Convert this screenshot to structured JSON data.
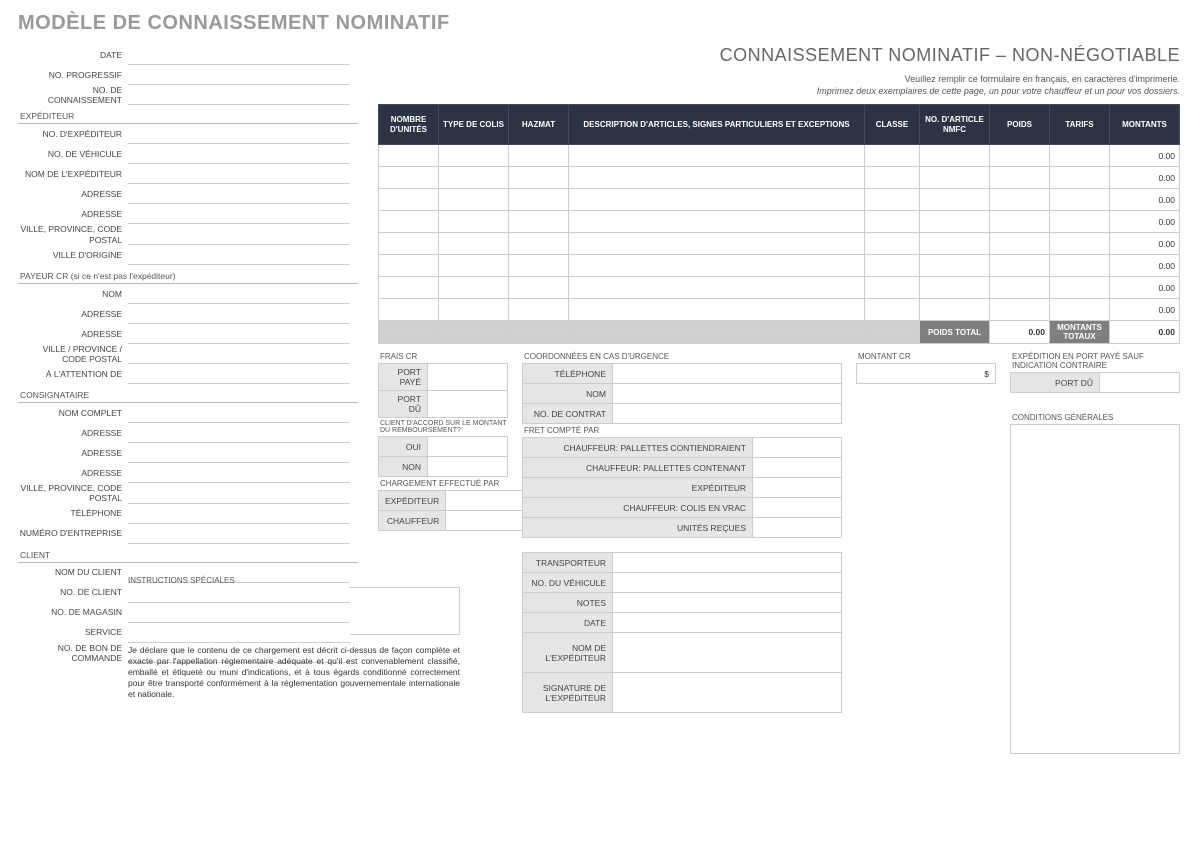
{
  "title": "MODÈLE DE CONNAISSEMENT NOMINATIF",
  "subtitle": "CONNAISSEMENT NOMINATIF – NON-NÉGOTIABLE",
  "note1": "Veuillez remplir ce formulaire en français, en caractères d'imprimerie.",
  "note2": "Imprimez deux exemplaires de cette page, un pour votre chauffeur et un pour vos dossiers.",
  "top_fields": {
    "date": "DATE",
    "prog": "NO. PROGRESSIF",
    "bol": "NO. DE CONNAISSEMENT"
  },
  "expediteur": {
    "heading": "EXPÉDITEUR",
    "fields": [
      "NO. D'EXPÉDITEUR",
      "NO. DE VÉHICULE",
      "NOM DE L'EXPÉDITEUR",
      "ADRESSE",
      "ADRESSE",
      "VILLE, PROVINCE, CODE POSTAL",
      "VILLE D'ORIGINE"
    ]
  },
  "payeur": {
    "heading": "PAYEUR CR (si ce n'est pas l'expéditeur)",
    "fields": [
      "NOM",
      "ADRESSE",
      "ADRESSE",
      "VILLE / PROVINCE / CODE POSTAL",
      "À L'ATTENTION DE"
    ]
  },
  "consignataire": {
    "heading": "CONSIGNATAIRE",
    "fields": [
      "NOM COMPLET",
      "ADRESSE",
      "ADRESSE",
      "ADRESSE",
      "VILLE, PROVINCE, CODE POSTAL",
      "TÉLÉPHONE",
      "NUMÉRO D'ENTREPRISE"
    ]
  },
  "client": {
    "heading": "CLIENT",
    "fields": [
      "NOM DU CLIENT",
      "NO. DE CLIENT",
      "NO. DE MAGASIN",
      "SERVICE",
      "NO. DE BON DE COMMANDE"
    ]
  },
  "items_headers": [
    "NOMBRE D'UNITÉS",
    "TYPE DE COLIS",
    "HAZMAT",
    "DESCRIPTION D'ARTICLES, SIGNES PARTICULIERS ET EXCEPTIONS",
    "CLASSE",
    "NO. D'ARTICLE NMFC",
    "POIDS",
    "TARIFS",
    "MONTANTS"
  ],
  "items_col_widths": [
    "60px",
    "70px",
    "60px",
    "auto",
    "55px",
    "70px",
    "60px",
    "60px",
    "70px"
  ],
  "items_rows": 8,
  "zero": "0.00",
  "totals": {
    "poids_total": "POIDS TOTAL",
    "poids_val": "0.00",
    "montants_totaux": "MONTANTS TOTAUX",
    "montants_val": "0.00"
  },
  "frais_cr": {
    "heading": "FRAIS CR",
    "rows": [
      "PORT PAYÉ",
      "PORT DÛ"
    ]
  },
  "client_accord": {
    "heading": "CLIENT D'ACCORD SUR LE MONTANT DU REMBOURSEMENT?",
    "rows": [
      "OUI",
      "NON"
    ]
  },
  "chargement": {
    "heading": "CHARGEMENT EFFECTUÉ PAR",
    "rows": [
      "EXPÉDITEUR",
      "CHAUFFEUR"
    ]
  },
  "urgence": {
    "heading": "COORDONNÉES EN CAS D'URGENCE",
    "rows": [
      "TÉLÉPHONE",
      "NOM",
      "NO. DE CONTRAT"
    ]
  },
  "fret": {
    "heading": "FRET COMPTÉ PAR",
    "rows": [
      "CHAUFFEUR: PALLETTES CONTIENDRAIENT",
      "CHAUFFEUR: PALLETTES CONTENANT",
      "EXPÉDITEUR",
      "CHAUFFEUR: COLIS EN VRAC",
      "UNITÉS REÇUES"
    ]
  },
  "montant_cr": {
    "heading": "MONTANT CR",
    "dollar": "$"
  },
  "expedition": {
    "heading": "EXPÉDITION EN PORT PAYÉ SAUF INDICATION CONTRAIRE",
    "row": "PORT DÛ"
  },
  "conditions": "CONDITIONS GÉNÉRALES",
  "instructions_heading": "INSTRUCTIONS SPÉCIALES",
  "declaration": "Je déclare que le contenu de ce chargement est décrit ci-dessus de façon complète et exacte par l'appellation réglementaire adéquate et qu'il est convenablement classifié, emballé et étiqueté ou muni d'indications, et à tous égards conditionné correctement pour être transporté conformément à la réglementation gouvernementale internationale et nationale.",
  "transport": {
    "rows": [
      "TRANSPORTEUR",
      "NO. DU VÉHICULE",
      "NOTES",
      "DATE",
      "NOM DE L'EXPÉDITEUR",
      "SIGNATURE DE L'EXPÉDITEUR"
    ]
  },
  "colors": {
    "header_bg": "#2b3344",
    "total_lbl_bg": "#7f7f7f",
    "total_row_bg": "#d0d0d0",
    "mini_lbl_bg": "#e6e6e6",
    "border": "#cccccc"
  }
}
